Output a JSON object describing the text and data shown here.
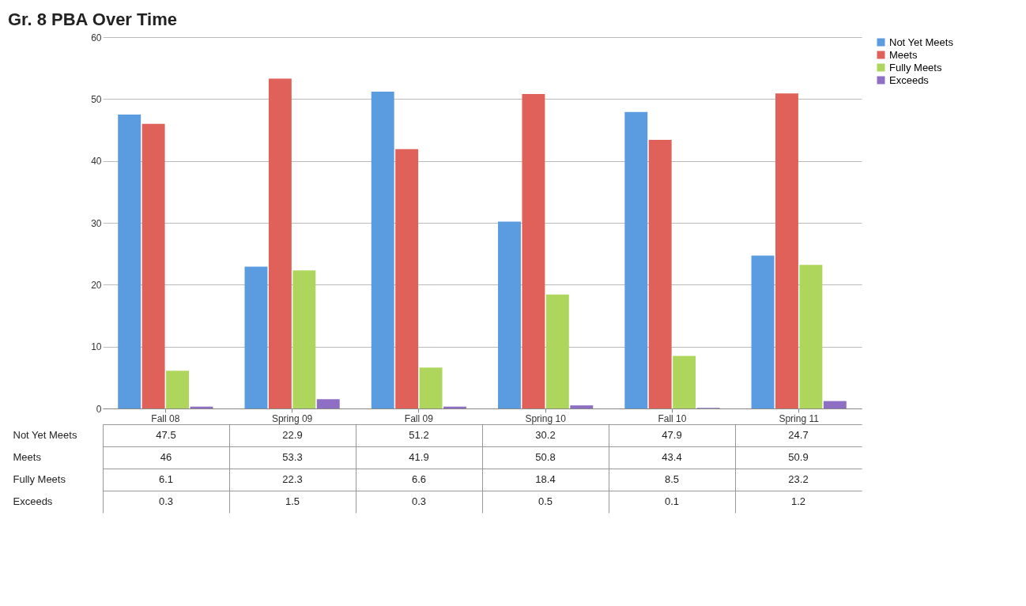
{
  "chart_data": {
    "type": "bar",
    "title": "Gr. 8 PBA Over Time",
    "categories": [
      "Fall 08",
      "Spring 09",
      "Fall 09",
      "Spring 10",
      "Fall 10",
      "Spring 11"
    ],
    "series": [
      {
        "name": "Not Yet Meets",
        "color": "#5b9be0",
        "values": [
          47.5,
          22.9,
          51.2,
          30.2,
          47.9,
          24.7
        ]
      },
      {
        "name": "Meets",
        "color": "#e0605a",
        "values": [
          46,
          53.3,
          41.9,
          50.8,
          43.4,
          50.9
        ]
      },
      {
        "name": "Fully Meets",
        "color": "#afd65c",
        "values": [
          6.1,
          22.3,
          6.6,
          18.4,
          8.5,
          23.2
        ]
      },
      {
        "name": "Exceeds",
        "color": "#8f6fc4",
        "values": [
          0.3,
          1.5,
          0.3,
          0.5,
          0.1,
          1.2
        ]
      }
    ],
    "ylim": [
      0,
      60
    ],
    "yticks": [
      0,
      10,
      20,
      30,
      40,
      50,
      60
    ],
    "grid": "y",
    "legend": "right",
    "data_labels": true
  }
}
